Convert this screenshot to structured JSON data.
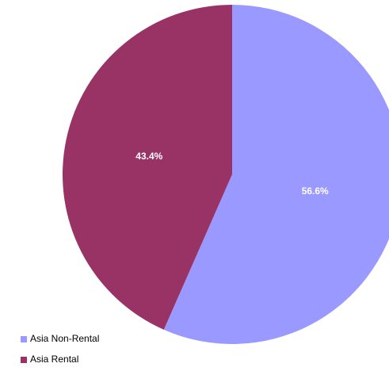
{
  "chart_data": {
    "type": "pie",
    "categories": [
      "Asia Non-Rental",
      "Asia Rental"
    ],
    "values": [
      56.6,
      43.4
    ],
    "value_labels": [
      "56.6%",
      "43.4%"
    ],
    "colors": [
      "#9999ff",
      "#993366"
    ],
    "legend": "bottom-left"
  }
}
